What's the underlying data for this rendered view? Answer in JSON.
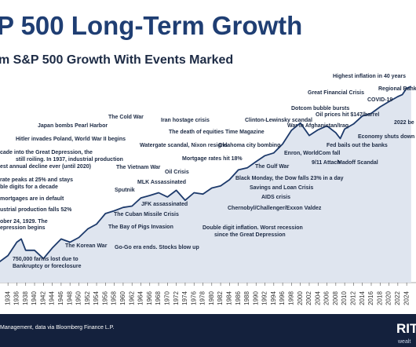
{
  "chart_data": {
    "type": "line",
    "title": "P 500 Long-Term Growth",
    "subtitle": "m S&P 500 Growth With Events Marked",
    "source": "Management, data via Bloomberg Finance L.P.",
    "logo": "RIT",
    "logo_sub": "wealt",
    "log_scale": true,
    "color": "#1d3a6b",
    "xlim": [
      1932.2,
      2026.1
    ],
    "ylim": [
      5,
      8000
    ],
    "xticks": [
      1934,
      1936,
      1938,
      1940,
      1942,
      1944,
      1946,
      1948,
      1950,
      1952,
      1954,
      1956,
      1958,
      1960,
      1962,
      1964,
      1966,
      1968,
      1970,
      1972,
      1974,
      1976,
      1978,
      1980,
      1982,
      1984,
      1986,
      1988,
      1990,
      1992,
      1994,
      1996,
      1998,
      2000,
      2002,
      2004,
      2006,
      2008,
      2010,
      2012,
      2014,
      2016,
      2018,
      2020,
      2022,
      2024
    ],
    "x": [
      1932,
      1934,
      1936,
      1937,
      1938,
      1940,
      1942,
      1944,
      1946,
      1948,
      1950,
      1952,
      1954,
      1956,
      1958,
      1960,
      1962,
      1964,
      1966,
      1968,
      1970,
      1972,
      1974,
      1976,
      1978,
      1980,
      1982,
      1984,
      1986,
      1988,
      1990,
      1992,
      1994,
      1996,
      1998,
      2000,
      2002,
      2004,
      2006,
      2008,
      2009,
      2010,
      2012,
      2014,
      2016,
      2018,
      2020,
      2022,
      2023,
      2024,
      2025
    ],
    "values": [
      7,
      9,
      15,
      17,
      11,
      11,
      8,
      12,
      17,
      15,
      18,
      25,
      30,
      45,
      50,
      57,
      60,
      82,
      90,
      100,
      85,
      110,
      75,
      100,
      95,
      120,
      130,
      165,
      240,
      260,
      330,
      415,
      460,
      650,
      1100,
      1450,
      900,
      1120,
      1300,
      1000,
      800,
      1150,
      1400,
      1900,
      2100,
      2700,
      3300,
      4000,
      4300,
      5500,
      5900
    ],
    "annotations": [
      "Highest inflation in 40 years",
      "Regional Bank",
      "Great Financial Crisis",
      "COVID-19",
      "Dotcom bubble bursts",
      "Oil prices hit $147/barrel",
      "2022 be",
      "The Cold War",
      "Japan bombs Pearl Harbor",
      "Iran hostage crisis",
      "Clinton-Lewinsky scandal",
      "The death of equities Time Magazine",
      "War in Afghanistan/Iraq",
      "Hitler invades Poland, World War II begins",
      "Economy shuts down",
      "Watergate scandal, Nixon resigns",
      "Oklahoma city bombing",
      "Fed bails out the banks",
      "cade into the Great Depression, the",
      "still roiling. In 1937, industrial production",
      "est annual decline ever (until 2020)",
      "Enron, WorldCom fall",
      "Mortgage rates hit 18%",
      "9/11 Attach",
      "Madoff Scandal",
      "The Gulf War",
      "Oil Crisis",
      "The Vietnam War",
      "rate peaks at 25% and stays",
      "ble digits for a decade",
      "MLK Assassinated",
      "Black Monday, the Dow falls 23% in a day",
      "Sputnik",
      "Savings and Loan Crisis",
      "mortgages are in default",
      "AIDS crisis",
      "JFK assassinated",
      "ustrial production falls 52%",
      "Chernobyl/Challenger/Exxon Valdez",
      "The Cuban Missile Crisis",
      "ober 24, 1929. The",
      "epression begins",
      "The Bay of Pigs Invasion",
      "Double digit inflation. Worst recession",
      "since the Great Depression",
      "The Korean War",
      "Go-Go era ends. Stocks blow up",
      "750,000 farms lost due to",
      "Bankruptcy or foreclosure"
    ]
  }
}
